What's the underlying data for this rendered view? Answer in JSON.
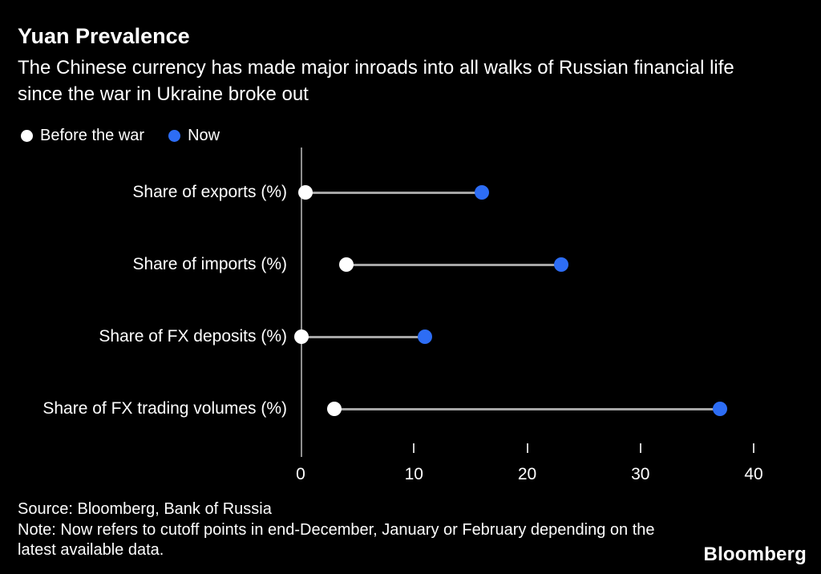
{
  "header": {
    "title": "Yuan Prevalence",
    "subtitle": "The Chinese currency has made major inroads into all walks of Russian financial life since the war in Ukraine broke out"
  },
  "legend": [
    {
      "label": "Before the war",
      "color": "#ffffff"
    },
    {
      "label": "Now",
      "color": "#2d6df5"
    }
  ],
  "chart_data": {
    "type": "dumbbell",
    "orientation": "horizontal",
    "categories": [
      "Share of exports (%)",
      "Share of imports (%)",
      "Share of FX deposits (%)",
      "Share of FX trading volumes (%)"
    ],
    "series": [
      {
        "name": "Before the war",
        "color": "#ffffff",
        "values": [
          0.4,
          4,
          0.1,
          3
        ]
      },
      {
        "name": "Now",
        "color": "#2d6df5",
        "values": [
          16,
          23,
          11,
          37
        ]
      }
    ],
    "xlim": [
      0,
      40
    ],
    "x_ticks": [
      0,
      10,
      20,
      30,
      40
    ],
    "grid": false,
    "legend_position": "top-left",
    "connector_color": "#a6a6a6",
    "axis_color": "#8f8f8f"
  },
  "footer": {
    "source": "Source: Bloomberg, Bank of Russia",
    "note": "Note: Now refers to cutoff points in end-December, January or February depending on the latest available data.",
    "brand": "Bloomberg"
  }
}
